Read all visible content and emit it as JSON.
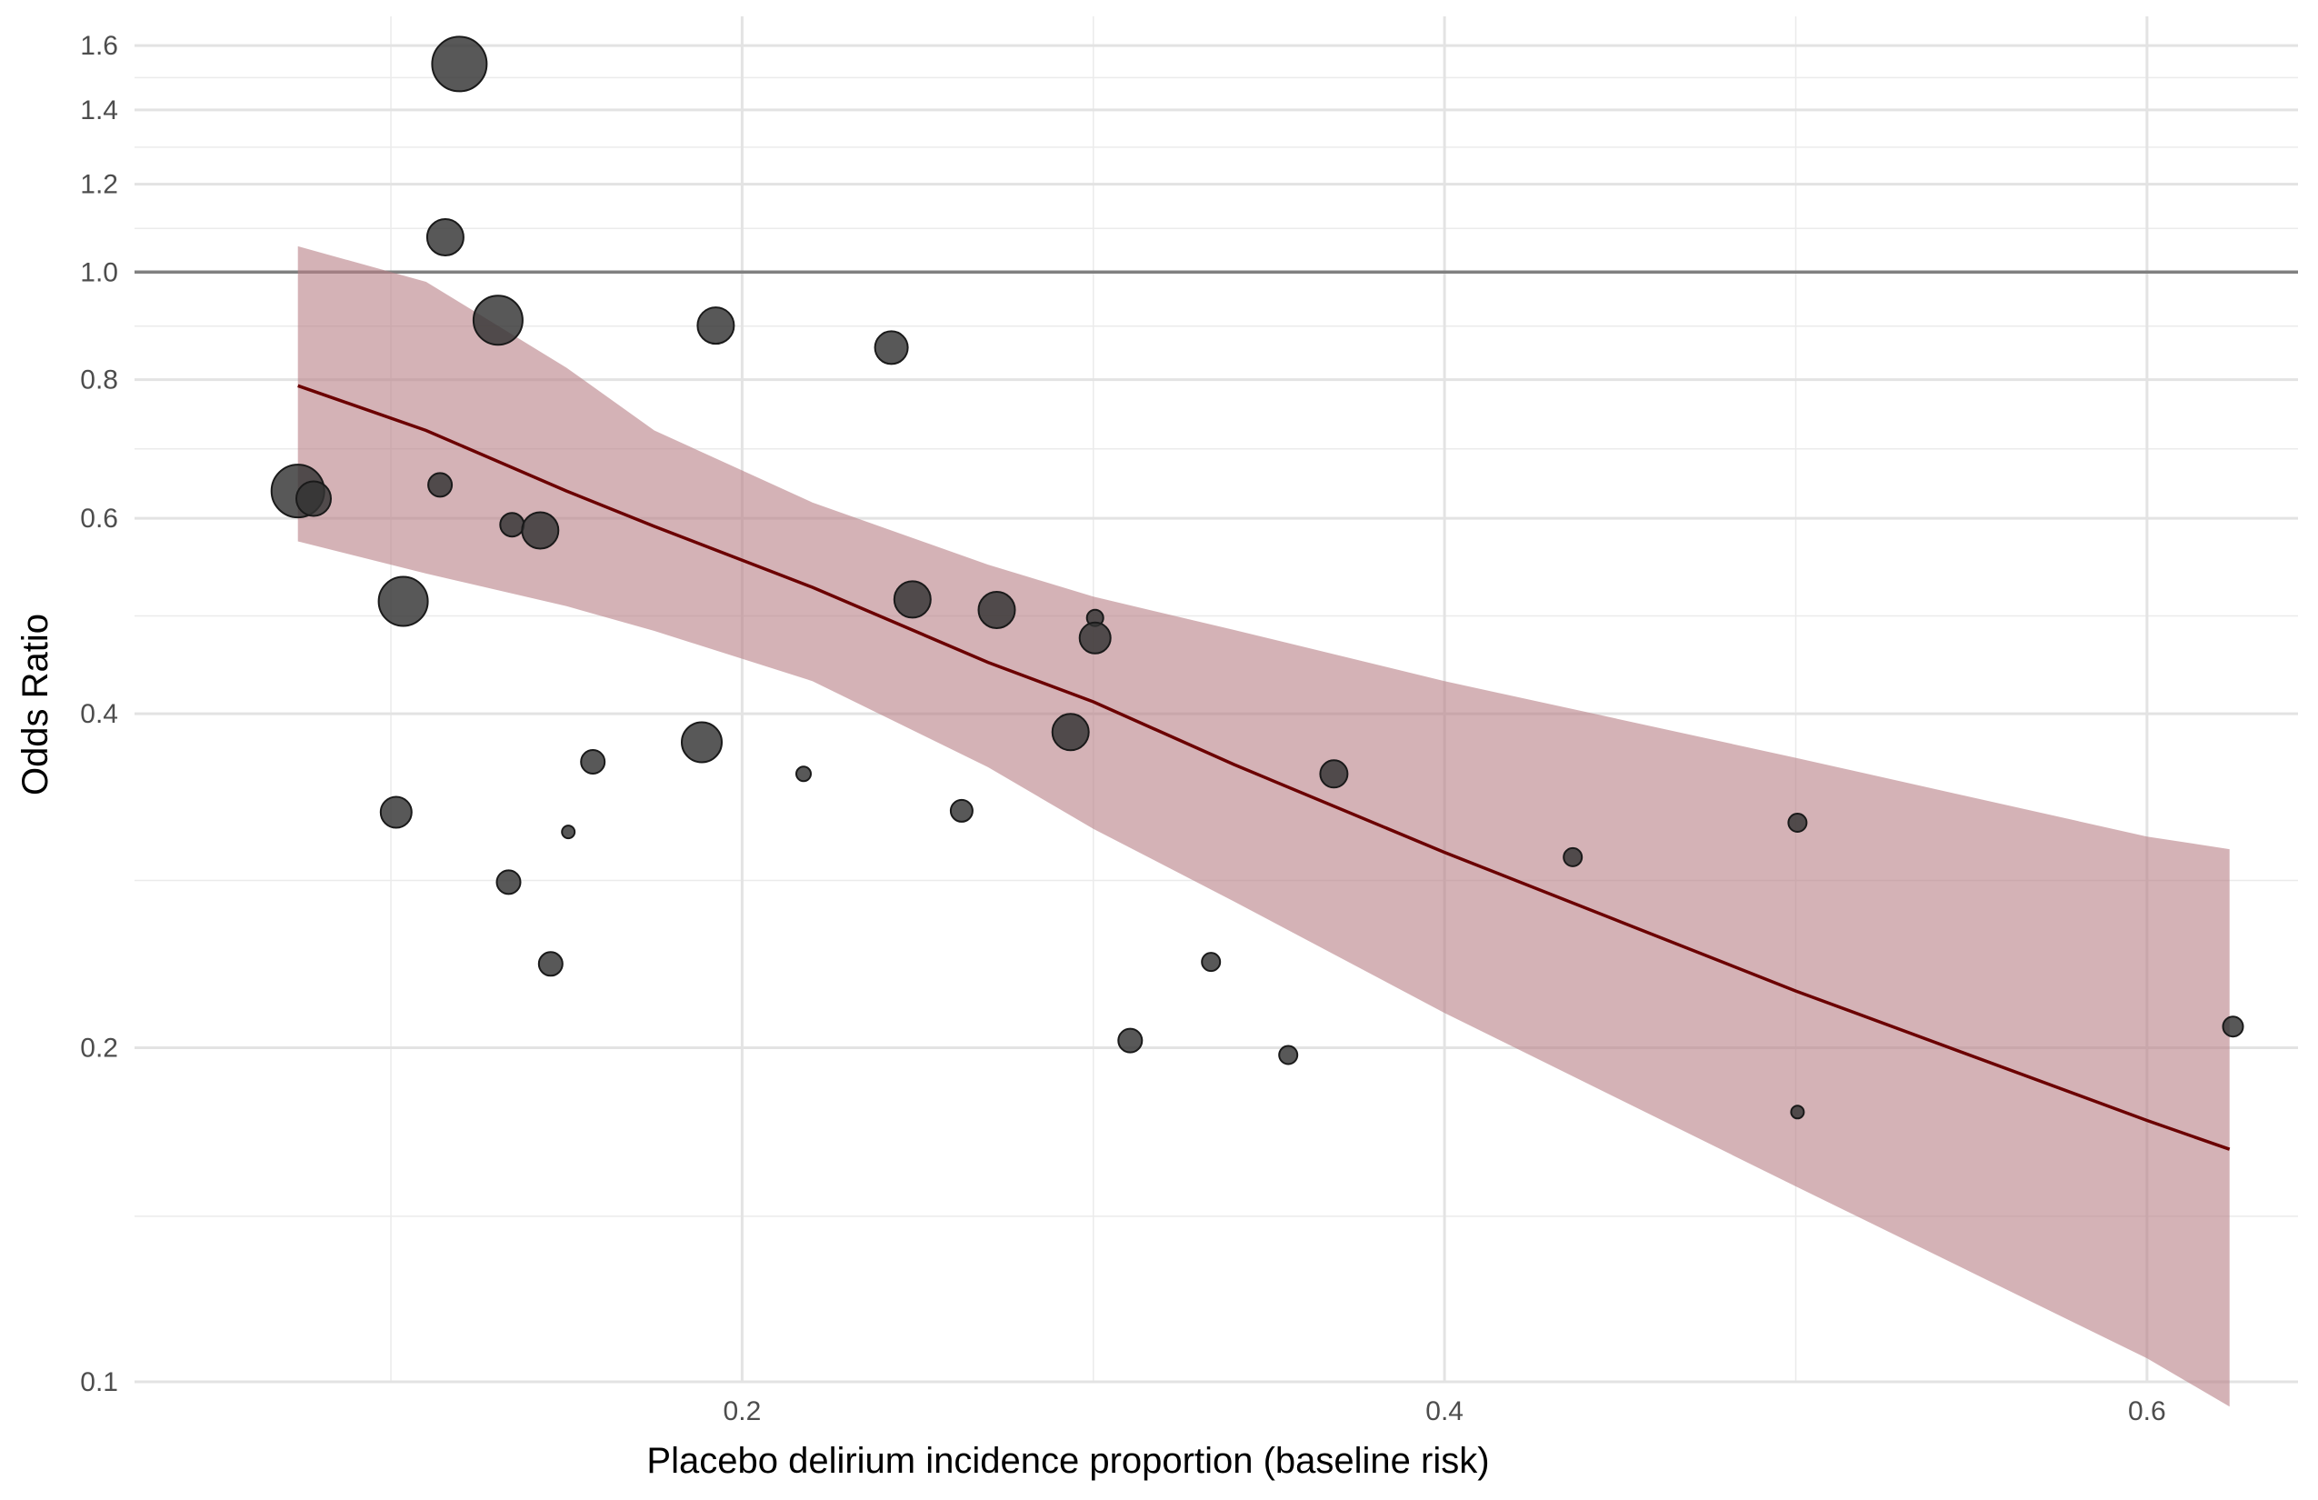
{
  "chart_data": {
    "type": "scatter",
    "title": "",
    "xlabel": "Placebo delirium incidence proportion (baseline risk)",
    "ylabel": "Odds Ratio",
    "xlim": [
      0.027,
      0.643
    ],
    "ylim": [
      0.1,
      1.7
    ],
    "y_scale": "log",
    "grid": true,
    "legend": "none",
    "x_ticks": [
      0.2,
      0.4,
      0.6
    ],
    "x_tick_labels": [
      "0.2",
      "0.4",
      "0.6"
    ],
    "x_minor_ticks": [
      0.1,
      0.3,
      0.5
    ],
    "y_ticks": [
      0.1,
      0.2,
      0.4,
      0.6,
      0.8,
      1.0,
      1.2,
      1.4,
      1.6
    ],
    "y_tick_labels": [
      "0.1",
      "0.2",
      "0.4",
      "0.6",
      "0.8",
      "1.0",
      "1.2",
      "1.4",
      "1.6"
    ],
    "y_minor_ticks": [
      0.141,
      0.283,
      0.49,
      0.693,
      0.894,
      1.095,
      1.296,
      1.497
    ],
    "reference_line": {
      "y": 1.0,
      "color": "#808080"
    },
    "colors": {
      "point": "#333333",
      "line": "#6b0000",
      "band": "#b87f86"
    },
    "regression": {
      "x": [
        0.0735,
        0.11,
        0.15,
        0.175,
        0.22,
        0.27,
        0.3,
        0.34,
        0.4,
        0.5,
        0.6,
        0.6235
      ],
      "fit": [
        0.79,
        0.72,
        0.635,
        0.59,
        0.52,
        0.445,
        0.41,
        0.36,
        0.3,
        0.225,
        0.172,
        0.162
      ],
      "lower": [
        0.572,
        0.535,
        0.5,
        0.475,
        0.428,
        0.358,
        0.315,
        0.271,
        0.215,
        0.15,
        0.105,
        0.095
      ],
      "upper": [
        1.055,
        0.98,
        0.82,
        0.72,
        0.62,
        0.545,
        0.51,
        0.476,
        0.428,
        0.365,
        0.31,
        0.302
      ]
    },
    "points": [
      {
        "x": 0.1195,
        "y": 1.54,
        "size": 30
      },
      {
        "x": 0.1155,
        "y": 1.075,
        "size": 20
      },
      {
        "x": 0.1305,
        "y": 0.905,
        "size": 27
      },
      {
        "x": 0.1925,
        "y": 0.895,
        "size": 20
      },
      {
        "x": 0.2425,
        "y": 0.855,
        "size": 18
      },
      {
        "x": 0.0735,
        "y": 0.635,
        "size": 29
      },
      {
        "x": 0.078,
        "y": 0.625,
        "size": 19
      },
      {
        "x": 0.114,
        "y": 0.643,
        "size": 13
      },
      {
        "x": 0.1345,
        "y": 0.592,
        "size": 13
      },
      {
        "x": 0.1425,
        "y": 0.585,
        "size": 20
      },
      {
        "x": 0.1035,
        "y": 0.505,
        "size": 27
      },
      {
        "x": 0.2485,
        "y": 0.507,
        "size": 20
      },
      {
        "x": 0.2725,
        "y": 0.496,
        "size": 20
      },
      {
        "x": 0.3005,
        "y": 0.488,
        "size": 9
      },
      {
        "x": 0.3005,
        "y": 0.468,
        "size": 17
      },
      {
        "x": 0.2935,
        "y": 0.385,
        "size": 20
      },
      {
        "x": 0.1885,
        "y": 0.377,
        "size": 22
      },
      {
        "x": 0.1575,
        "y": 0.362,
        "size": 13
      },
      {
        "x": 0.2175,
        "y": 0.353,
        "size": 8
      },
      {
        "x": 0.3685,
        "y": 0.353,
        "size": 15
      },
      {
        "x": 0.1015,
        "y": 0.326,
        "size": 17
      },
      {
        "x": 0.2625,
        "y": 0.327,
        "size": 12
      },
      {
        "x": 0.1505,
        "y": 0.313,
        "size": 7
      },
      {
        "x": 0.5005,
        "y": 0.319,
        "size": 10
      },
      {
        "x": 0.4365,
        "y": 0.297,
        "size": 10
      },
      {
        "x": 0.1335,
        "y": 0.282,
        "size": 13
      },
      {
        "x": 0.1455,
        "y": 0.238,
        "size": 13
      },
      {
        "x": 0.3335,
        "y": 0.239,
        "size": 10
      },
      {
        "x": 0.3105,
        "y": 0.203,
        "size": 13
      },
      {
        "x": 0.3555,
        "y": 0.197,
        "size": 10
      },
      {
        "x": 0.6245,
        "y": 0.209,
        "size": 11
      },
      {
        "x": 0.5005,
        "y": 0.175,
        "size": 7
      }
    ]
  }
}
